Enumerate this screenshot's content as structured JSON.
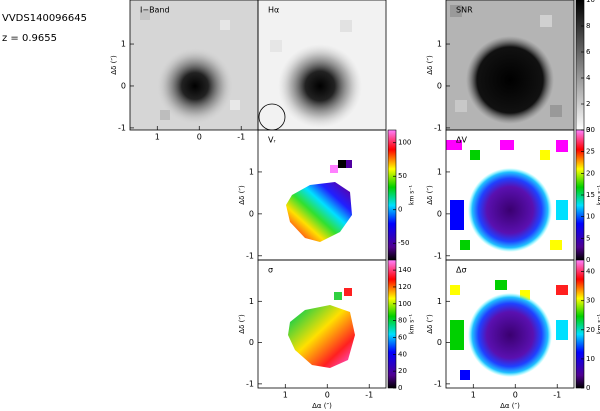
{
  "header": {
    "object": "VVDS140096645",
    "redshift": "z = 0.9655"
  },
  "chart_data": [
    {
      "type": "image",
      "title": "I−Band",
      "xlim": [
        1.65,
        -1.4
      ],
      "ylim": [
        -1.05,
        2.05
      ],
      "xticks": [
        1,
        0,
        -1
      ],
      "yticks": [
        1,
        0,
        -1
      ],
      "ylabel": "Δδ (″)"
    },
    {
      "type": "image",
      "title": "Hα"
    },
    {
      "type": "image",
      "title": "SNR",
      "ylim": [
        -1.05,
        2.05
      ],
      "yticks": [
        1,
        0,
        -1
      ],
      "ylabel": "Δδ (″)",
      "colorbar": {
        "lim": [
          0,
          10
        ],
        "ticks": [
          0,
          2,
          4,
          6,
          8,
          10
        ],
        "colormap": "gray"
      }
    },
    {
      "type": "image",
      "title": "Vᵣ",
      "ylim": [
        -1.1,
        2.0
      ],
      "yticks": [
        1,
        0,
        -1
      ],
      "ylabel": "Δδ (″)",
      "colorbar": {
        "label": "km s⁻¹",
        "lim": [
          -75,
          119
        ],
        "ticks": [
          -50,
          0,
          50,
          100
        ],
        "colormap": "rainbow"
      }
    },
    {
      "type": "image",
      "title": "ΔV",
      "ylim": [
        -1.1,
        2.0
      ],
      "yticks": [
        1,
        0,
        -1
      ],
      "ylabel": "Δδ (″)",
      "colorbar": {
        "label": "km s⁻¹",
        "lim": [
          0,
          30
        ],
        "ticks": [
          0,
          5,
          10,
          15,
          20,
          25,
          30
        ],
        "colormap": "rainbow"
      }
    },
    {
      "type": "image",
      "title": "σ",
      "xlim": [
        1.65,
        -1.4
      ],
      "ylim": [
        -1.1,
        2.0
      ],
      "xticks": [
        1,
        0,
        -1
      ],
      "yticks": [
        1,
        0,
        -1
      ],
      "ylabel": "Δδ (″)",
      "xlabel": "Δα (″)",
      "colorbar": {
        "label": "km s⁻¹",
        "lim": [
          0,
          152
        ],
        "ticks": [
          0,
          20,
          40,
          60,
          80,
          100,
          120,
          140
        ],
        "colormap": "rainbow"
      }
    },
    {
      "type": "image",
      "title": "Δσ",
      "xlim": [
        1.65,
        -1.4
      ],
      "ylim": [
        -1.1,
        2.0
      ],
      "xticks": [
        1,
        0,
        -1
      ],
      "yticks": [
        1,
        0,
        -1
      ],
      "ylabel": "Δδ (″)",
      "xlabel": "Δα (″)",
      "colorbar": {
        "label": "km s⁻¹",
        "lim": [
          0,
          44
        ],
        "ticks": [
          0,
          10,
          20,
          30,
          40
        ],
        "colormap": "rainbow"
      }
    }
  ]
}
